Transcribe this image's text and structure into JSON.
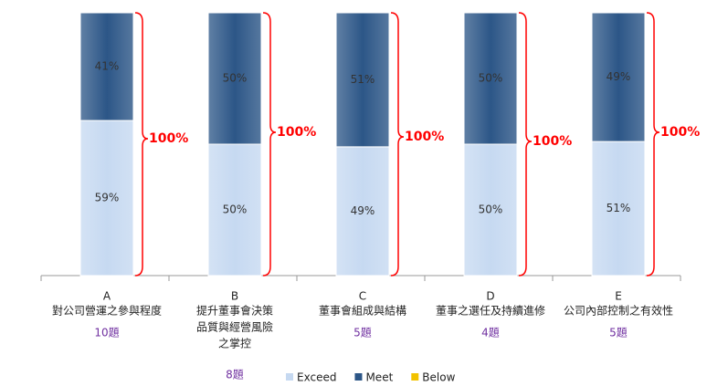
{
  "chart_data": {
    "type": "bar",
    "stacked": true,
    "categories": [
      "A",
      "B",
      "C",
      "D",
      "E"
    ],
    "descriptions": [
      [
        "對公司營運之參與程度"
      ],
      [
        "提升董事會決策",
        "品質與經營風險",
        "之掌控"
      ],
      [
        "董事會組成與結構"
      ],
      [
        "董事之選任及持續進修"
      ],
      [
        "公司內部控制之有效性"
      ]
    ],
    "question_counts": [
      "10題",
      "8題",
      "5題",
      "4題",
      "5題"
    ],
    "series": [
      {
        "name": "Exceed",
        "color": "#c6d9f1",
        "values": [
          59,
          50,
          49,
          50,
          51
        ],
        "value_labels": [
          "59%",
          "50%",
          "49%",
          "50%",
          "51%"
        ]
      },
      {
        "name": "Meet",
        "color": "#2c5687",
        "values": [
          41,
          50,
          51,
          50,
          49
        ],
        "value_labels": [
          "41%",
          "50%",
          "51%",
          "50%",
          "49%"
        ]
      },
      {
        "name": "Below",
        "color": "#f2c200",
        "values": [
          0,
          0,
          0,
          0,
          0
        ]
      }
    ],
    "annotations": [
      "100%",
      "100%",
      "100%",
      "100%",
      "100%"
    ],
    "ylim": [
      0,
      100
    ]
  }
}
